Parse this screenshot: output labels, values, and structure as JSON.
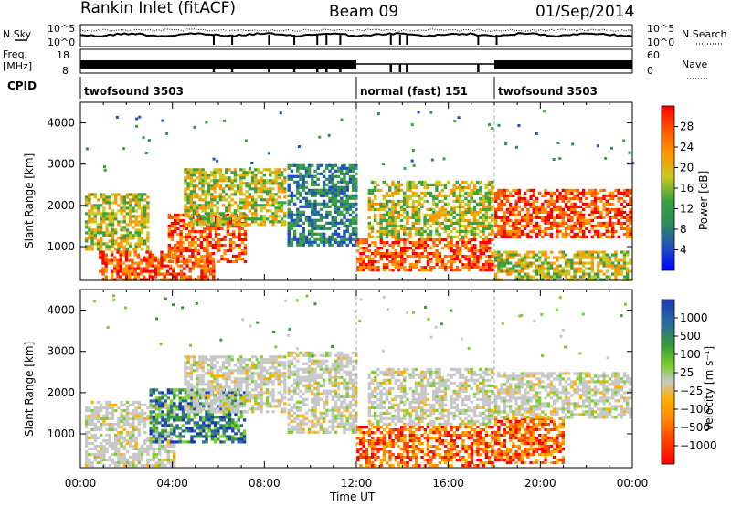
{
  "header": {
    "radar": "Rankin Inlet (fitACF)",
    "beam": "Beam 09",
    "date": "01/Sep/2014"
  },
  "strip_labels": {
    "nsky": "N.Sky",
    "nsky_top": "10^5",
    "nsky_bottom": "10^0",
    "nsearch": "N.Search",
    "nsearch_top": "10^5",
    "nsearch_bottom": "10^0",
    "freq": "Freq.",
    "freq_unit": "[MHz]",
    "freq_top": "18",
    "freq_bottom": "8",
    "nave": "Nave",
    "nave_top": "60",
    "nave_bottom": "0",
    "cpid": "CPID"
  },
  "cpid_segments": [
    {
      "label": "twofsound 3503",
      "start_hour": 0,
      "end_hour": 12
    },
    {
      "label": "normal (fast) 151",
      "start_hour": 12,
      "end_hour": 18
    },
    {
      "label": "twofsound 3503",
      "start_hour": 18,
      "end_hour": 24
    }
  ],
  "colors": {
    "power_scale": [
      "#0000ff",
      "#1f4fbf",
      "#2f8a5a",
      "#3aa040",
      "#c8c820",
      "#ff9600",
      "#ff5a00",
      "#ff0000"
    ],
    "velocity_scale": [
      "#ff0000",
      "#ff4500",
      "#ff8c00",
      "#ffb000",
      "#c8c8c8",
      "#7ccf2c",
      "#3a9a3a",
      "#2a6aa0",
      "#1a3ab0"
    ]
  },
  "chart_data": [
    {
      "type": "heatmap",
      "name": "power",
      "ylabel": "Slant Range [km]",
      "xlabel": "Time UT",
      "x_ticks": [
        "00:00",
        "04:00",
        "08:00",
        "12:00",
        "16:00",
        "20:00",
        "00:00"
      ],
      "y_ticks": [
        "1000",
        "2000",
        "3000",
        "4000"
      ],
      "xlim": [
        0,
        24
      ],
      "ylim": [
        180,
        4500
      ],
      "colorbar": {
        "label": "Power [dB]",
        "ticks": [
          "4",
          "8",
          "12",
          "16",
          "20",
          "24",
          "28"
        ],
        "range": [
          0,
          32
        ]
      },
      "regions": [
        {
          "x": [
            0.8,
            4.2
          ],
          "y": [
            180,
            900
          ],
          "level": "high"
        },
        {
          "x": [
            4.2,
            5.8
          ],
          "y": [
            180,
            700
          ],
          "level": "high"
        },
        {
          "x": [
            3.8,
            7.2
          ],
          "y": [
            600,
            1800
          ],
          "level": "high"
        },
        {
          "x": [
            0.2,
            3.0
          ],
          "y": [
            900,
            2300
          ],
          "level": "mid"
        },
        {
          "x": [
            4.5,
            9.0
          ],
          "y": [
            1500,
            2900
          ],
          "level": "mid"
        },
        {
          "x": [
            9.0,
            12.0
          ],
          "y": [
            1000,
            3000
          ],
          "level": "low"
        },
        {
          "x": [
            12.0,
            18.0
          ],
          "y": [
            400,
            1200
          ],
          "level": "high"
        },
        {
          "x": [
            12.5,
            18.0
          ],
          "y": [
            1200,
            2600
          ],
          "level": "mid"
        },
        {
          "x": [
            18.0,
            24.0
          ],
          "y": [
            1200,
            2400
          ],
          "level": "high"
        },
        {
          "x": [
            18.0,
            24.0
          ],
          "y": [
            180,
            900
          ],
          "level": "mid"
        }
      ]
    },
    {
      "type": "heatmap",
      "name": "velocity",
      "ylabel": "Slant Range [km]",
      "xlabel": "Time UT",
      "x_ticks": [
        "00:00",
        "04:00",
        "08:00",
        "12:00",
        "16:00",
        "20:00",
        "00:00"
      ],
      "y_ticks": [
        "1000",
        "2000",
        "3000",
        "4000"
      ],
      "xlim": [
        0,
        24
      ],
      "ylim": [
        180,
        4500
      ],
      "colorbar": {
        "label": "Velocity [m s⁻¹]",
        "ticks": [
          "1000",
          "500",
          "100",
          "25",
          "−25",
          "−100",
          "−500",
          "−1000"
        ],
        "range": [
          -1000,
          1000
        ]
      },
      "regions": [
        {
          "x": [
            0.2,
            4.2
          ],
          "y": [
            180,
            1800
          ],
          "level": "ground"
        },
        {
          "x": [
            3.0,
            7.2
          ],
          "y": [
            800,
            2100
          ],
          "level": "toward"
        },
        {
          "x": [
            4.5,
            9.0
          ],
          "y": [
            1500,
            2900
          ],
          "level": "ground"
        },
        {
          "x": [
            9.0,
            12.0
          ],
          "y": [
            1000,
            3000
          ],
          "level": "ground"
        },
        {
          "x": [
            12.0,
            18.0
          ],
          "y": [
            180,
            1200
          ],
          "level": "away"
        },
        {
          "x": [
            12.5,
            18.0
          ],
          "y": [
            1200,
            2600
          ],
          "level": "ground"
        },
        {
          "x": [
            18.0,
            21.0
          ],
          "y": [
            300,
            1400
          ],
          "level": "away"
        },
        {
          "x": [
            18.0,
            24.0
          ],
          "y": [
            1400,
            2500
          ],
          "level": "ground"
        }
      ]
    }
  ]
}
